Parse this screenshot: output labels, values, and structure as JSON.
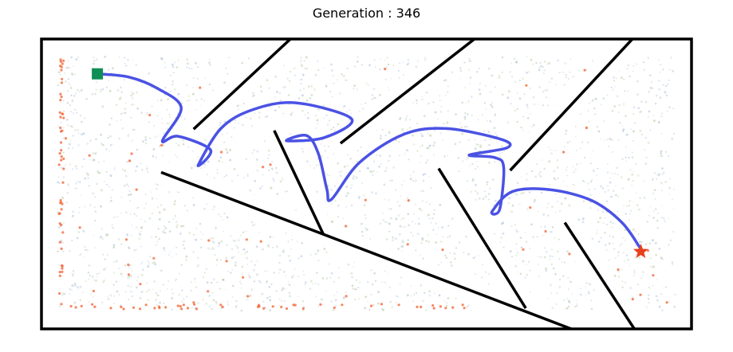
{
  "chart_data": {
    "type": "scatter",
    "title": "Generation : 346",
    "xlabel": "",
    "ylabel": "",
    "xlim": [
      0,
      100
    ],
    "ylim": [
      0,
      45
    ],
    "grid": false,
    "walls": [
      {
        "name": "wall-1",
        "x": [
          38.3,
          23.4
        ],
        "y": [
          45.0,
          31.0
        ]
      },
      {
        "name": "wall-2",
        "x": [
          66.6,
          46.0
        ],
        "y": [
          45.0,
          28.8
        ]
      },
      {
        "name": "wall-3",
        "x": [
          90.9,
          72.1
        ],
        "y": [
          45.0,
          24.6
        ]
      },
      {
        "name": "wall-4",
        "x": [
          18.4,
          81.5
        ],
        "y": [
          24.3,
          0.0
        ]
      },
      {
        "name": "wall-5",
        "x": [
          35.8,
          43.4
        ],
        "y": [
          30.8,
          14.6
        ]
      },
      {
        "name": "wall-6",
        "x": [
          61.1,
          74.5
        ],
        "y": [
          24.9,
          3.2
        ]
      },
      {
        "name": "wall-7",
        "x": [
          80.5,
          91.2
        ],
        "y": [
          16.5,
          0.0
        ]
      }
    ],
    "series": [
      {
        "type": "line",
        "color": "#4a52e4",
        "x": [
          8.6,
          13.4,
          17.9,
          21.5,
          18.6,
          21.0,
          26.0,
          24.1,
          27.6,
          32.4,
          39.1,
          47.7,
          43.5,
          37.7,
          40.8,
          42.6,
          43.9,
          44.6,
          48.9,
          55.7,
          62.3,
          70.8,
          71.6,
          65.8,
          69.7,
          71.1,
          70.5,
          69.3,
          72.4,
          78.3,
          84.7,
          89.3,
          92.2
        ],
        "y": [
          39.6,
          39.1,
          37.3,
          34.3,
          29.2,
          29.9,
          27.8,
          25.4,
          31.1,
          34.0,
          35.1,
          32.6,
          29.7,
          29.2,
          30.0,
          27.2,
          21.7,
          20.1,
          25.8,
          30.2,
          31.1,
          29.4,
          28.1,
          27.0,
          26.6,
          25.1,
          18.6,
          18.2,
          21.3,
          21.6,
          19.9,
          16.5,
          12.4
        ]
      }
    ],
    "markers": [
      {
        "name": "start",
        "shape": "square",
        "color": "#0f8f55",
        "x": 8.6,
        "y": 39.6
      },
      {
        "name": "goal",
        "shape": "star",
        "color": "#e8401c",
        "x": 92.2,
        "y": 12.0
      }
    ],
    "colors": {
      "population_cloud": "#b9c9a2",
      "population_cloud_alt": "#a9bfd8",
      "population_highlight": "#f26a3c",
      "frame": "#000000"
    }
  }
}
